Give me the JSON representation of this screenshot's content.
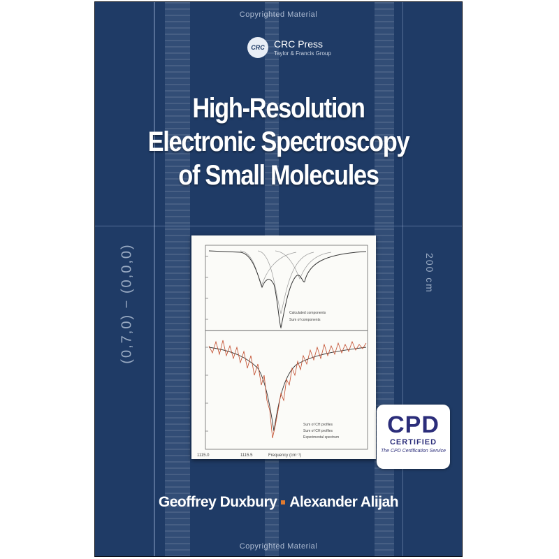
{
  "cover": {
    "top_mark": "Copyrighted Material",
    "bottom_mark": "Copyrighted Material",
    "publisher": {
      "logo_text": "CRC",
      "name": "CRC Press",
      "imprint": "Taylor & Francis Group"
    },
    "title_lines": [
      "High-Resolution",
      "Electronic Spectroscopy",
      "of Small Molecules"
    ],
    "side_formula_left": "(0,7,0) − (0,0,0)",
    "side_formula_right": "200 cm",
    "badge": {
      "main": "CPD",
      "certified": "CERTIFIED",
      "sub": "The CPD Certification Service"
    },
    "authors": [
      "Geoffrey Duxbury",
      "Alexander Alijah"
    ],
    "colors": {
      "background": "#1f3b66",
      "title": "#ffffff",
      "separator": "#e07a2f",
      "badge_text": "#2b2d7a"
    }
  },
  "figure": {
    "x_tick_left": "1115.0",
    "x_tick_mid": "1115.5",
    "x_label": "Frequency (cm⁻¹)",
    "top_legend": [
      "Calculated components",
      "Sum of components"
    ],
    "bottom_legend": [
      "Sum of CH profiles",
      "Sum of CH profiles",
      "Experimental spectrum"
    ]
  }
}
